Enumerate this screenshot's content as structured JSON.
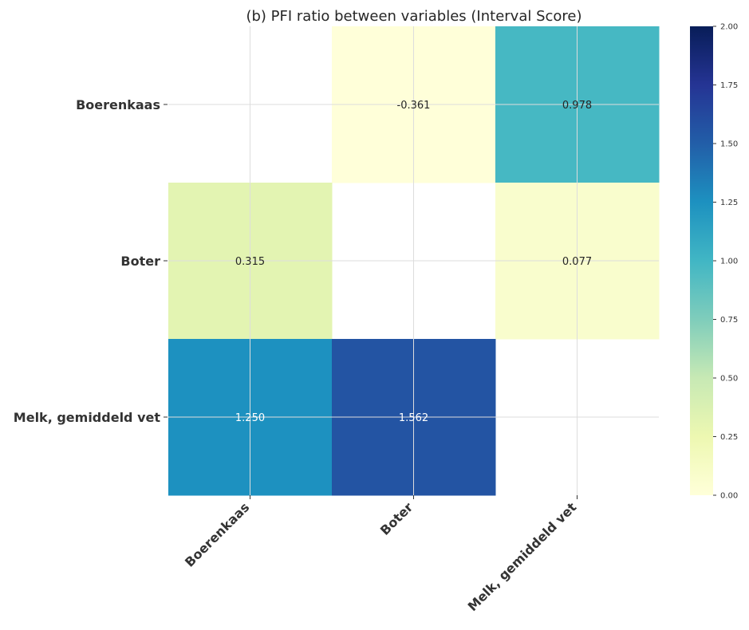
{
  "chart_data": {
    "type": "heatmap",
    "title": "(b) PFI ratio between variables (Interval Score)",
    "rows": [
      "Boerenkaas",
      "Boter",
      "Melk, gemiddeld vet"
    ],
    "columns": [
      "Boerenkaas",
      "Boter",
      "Melk, gemiddeld vet"
    ],
    "values": [
      [
        null,
        -0.361,
        0.978
      ],
      [
        0.315,
        null,
        0.077
      ],
      [
        1.25,
        1.562,
        null
      ]
    ],
    "value_labels": [
      [
        "",
        "-0.361",
        "0.978"
      ],
      [
        "0.315",
        "",
        "0.077"
      ],
      [
        "1.250",
        "1.562",
        ""
      ]
    ],
    "colormap": "YlGnBu",
    "colorbar": {
      "range": [
        0,
        2
      ],
      "ticks": [
        "0.00",
        "0.25",
        "0.50",
        "0.75",
        "1.00",
        "1.25",
        "1.50",
        "1.75",
        "2.00"
      ]
    },
    "grid": true
  }
}
